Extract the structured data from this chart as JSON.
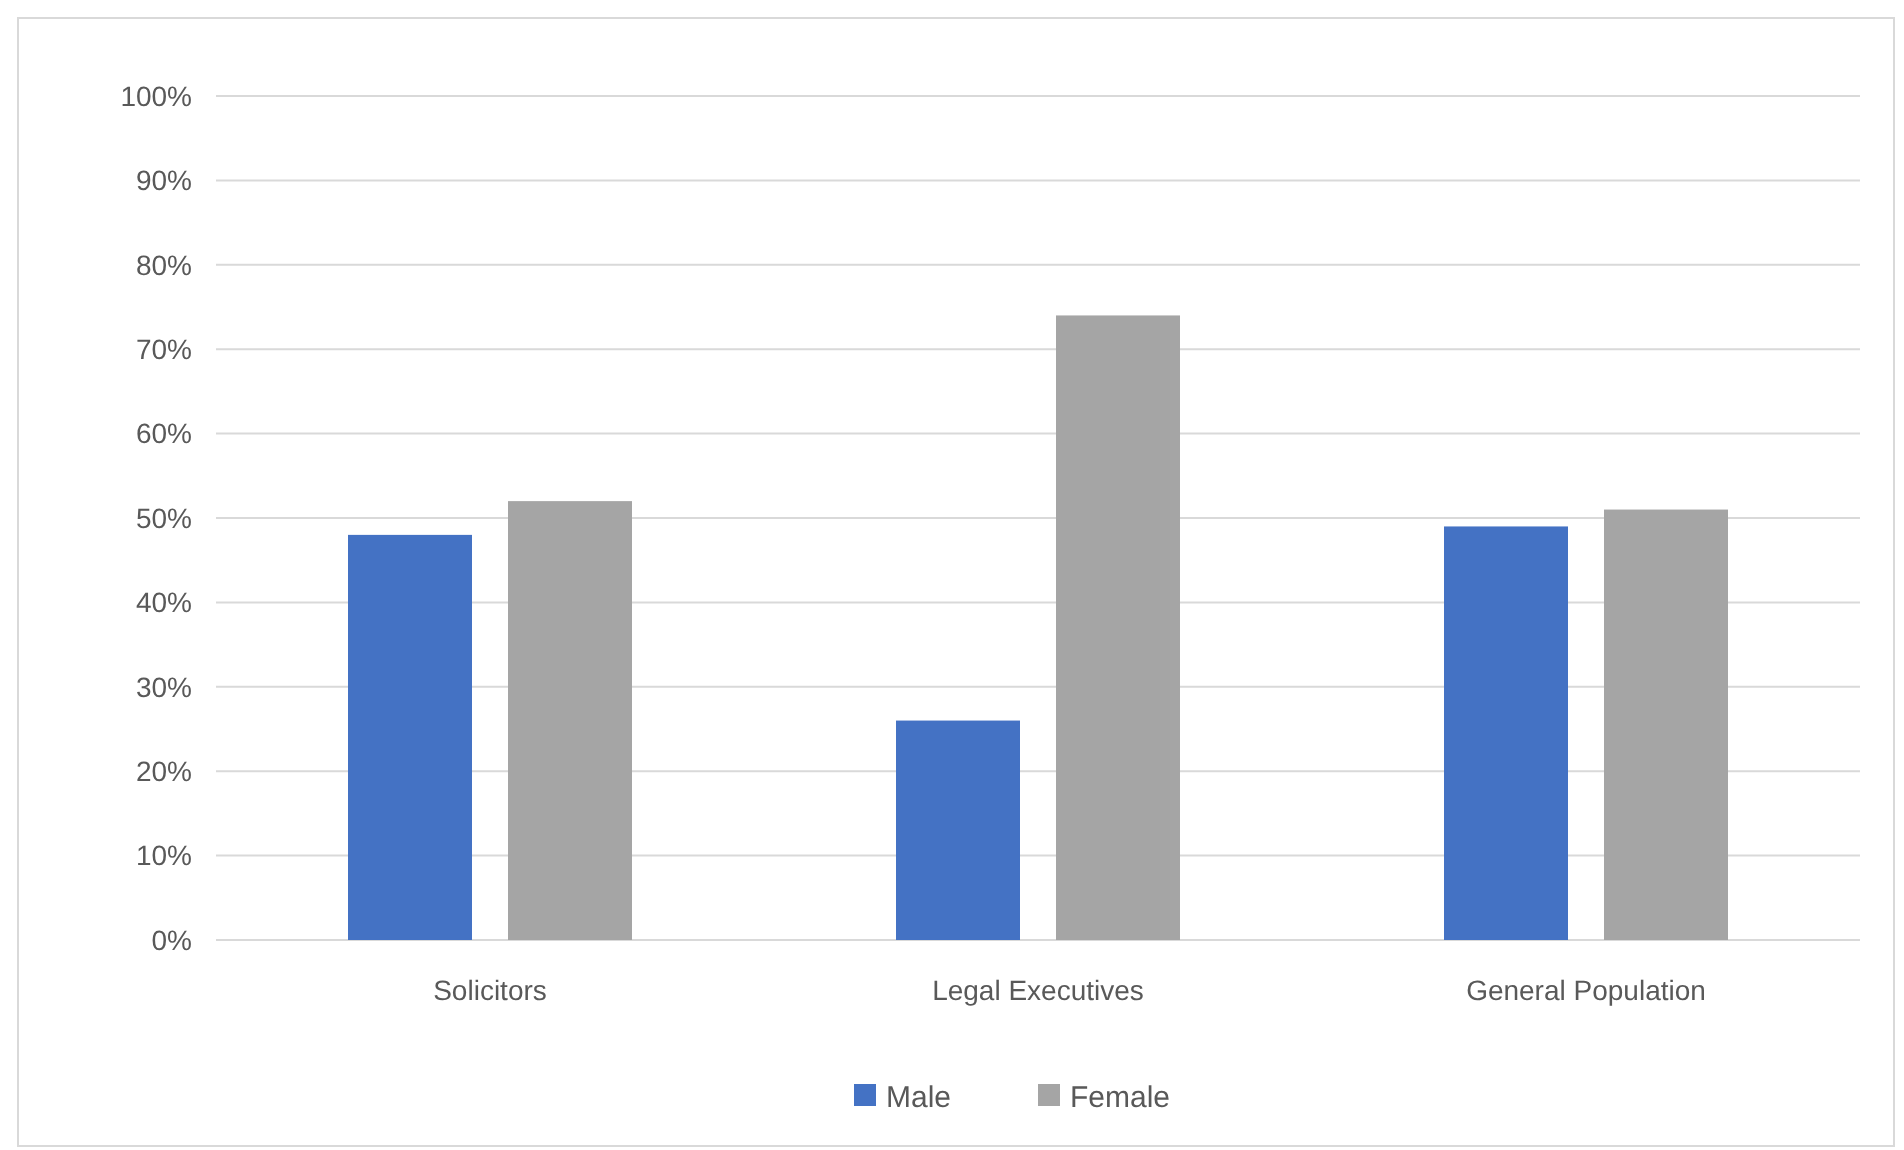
{
  "chart_data": {
    "type": "bar",
    "categories": [
      "Solicitors",
      "Legal Executives",
      "General Population"
    ],
    "series": [
      {
        "name": "Male",
        "color": "#4472c4",
        "values": [
          48,
          26,
          49
        ]
      },
      {
        "name": "Female",
        "color": "#a5a5a5",
        "values": [
          52,
          74,
          51
        ]
      }
    ],
    "ylim": [
      0,
      100
    ],
    "yticks": [
      {
        "value": 0,
        "label": "0%"
      },
      {
        "value": 10,
        "label": "10%"
      },
      {
        "value": 20,
        "label": "20%"
      },
      {
        "value": 30,
        "label": "30%"
      },
      {
        "value": 40,
        "label": "40%"
      },
      {
        "value": 50,
        "label": "50%"
      },
      {
        "value": 60,
        "label": "60%"
      },
      {
        "value": 70,
        "label": "70%"
      },
      {
        "value": 80,
        "label": "80%"
      },
      {
        "value": 90,
        "label": "90%"
      },
      {
        "value": 100,
        "label": "100%"
      }
    ],
    "grid": "y",
    "legend": "bottom"
  }
}
